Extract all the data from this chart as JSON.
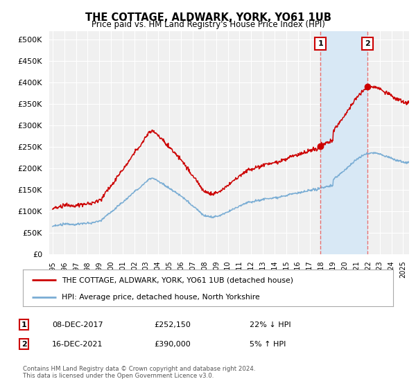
{
  "title": "THE COTTAGE, ALDWARK, YORK, YO61 1UB",
  "subtitle": "Price paid vs. HM Land Registry's House Price Index (HPI)",
  "ylabel_ticks": [
    "£0",
    "£50K",
    "£100K",
    "£150K",
    "£200K",
    "£250K",
    "£300K",
    "£350K",
    "£400K",
    "£450K",
    "£500K"
  ],
  "ytick_values": [
    0,
    50000,
    100000,
    150000,
    200000,
    250000,
    300000,
    350000,
    400000,
    450000,
    500000
  ],
  "ylim": [
    0,
    520000
  ],
  "xlim_start": 1994.7,
  "xlim_end": 2025.5,
  "hpi_color": "#7aadd4",
  "price_color": "#cc0000",
  "marker1_x": 2017.92,
  "marker1_y": 252150,
  "marker2_x": 2021.96,
  "marker2_y": 390000,
  "vline_color": "#e87070",
  "span_color": "#d8e8f5",
  "legend_label_red": "THE COTTAGE, ALDWARK, YORK, YO61 1UB (detached house)",
  "legend_label_blue": "HPI: Average price, detached house, North Yorkshire",
  "table_row1": [
    "1",
    "08-DEC-2017",
    "£252,150",
    "22% ↓ HPI"
  ],
  "table_row2": [
    "2",
    "16-DEC-2021",
    "£390,000",
    "5% ↑ HPI"
  ],
  "footer": "Contains HM Land Registry data © Crown copyright and database right 2024.\nThis data is licensed under the Open Government Licence v3.0.",
  "background_color": "#ffffff",
  "plot_bg_color": "#f0f0f0"
}
